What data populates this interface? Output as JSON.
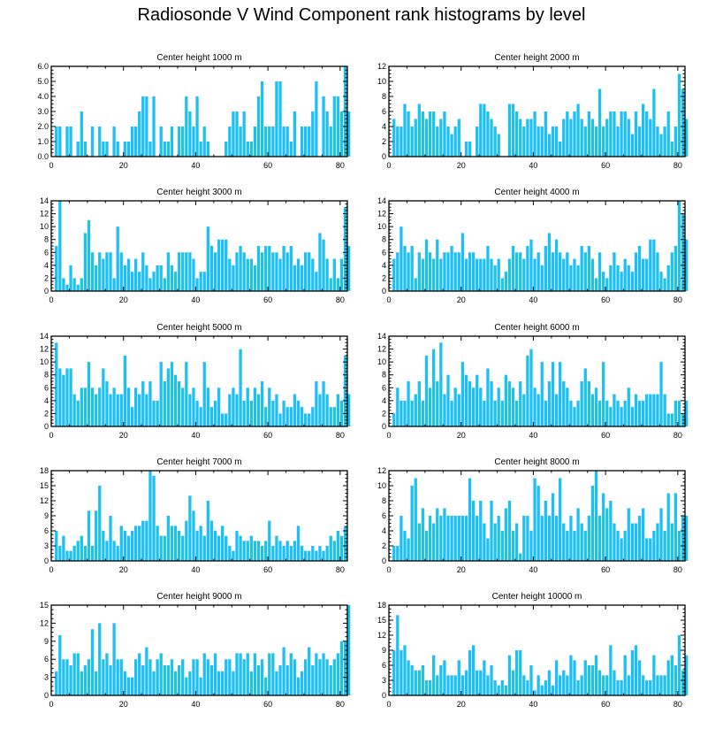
{
  "title": "Radiosonde V Wind Component rank histograms by level",
  "bar_color": "#1ec0f2",
  "chart_data": [
    {
      "type": "bar",
      "title": "Center height 1000 m",
      "xlim": [
        0,
        82
      ],
      "ylim": [
        0,
        6
      ],
      "xticks": [
        "0",
        "20",
        "40",
        "60",
        "80"
      ],
      "yticks": [
        "0.0",
        "1.0",
        "2.0",
        "3.0",
        "4.0",
        "5.0",
        "6.0"
      ],
      "values": [
        0,
        2,
        2,
        0,
        2,
        2,
        0,
        1,
        3,
        1,
        0,
        2,
        0,
        2,
        1,
        1,
        0,
        2,
        1,
        0,
        1,
        1,
        2,
        2,
        3,
        4,
        4,
        1,
        4,
        0,
        2,
        1,
        1,
        2,
        0,
        2,
        2,
        4,
        3,
        2,
        4,
        1,
        2,
        1,
        0,
        0,
        0,
        0,
        1,
        2,
        3,
        3,
        2,
        3,
        1,
        1,
        2,
        4,
        5,
        2,
        2,
        2,
        5,
        5,
        2,
        2,
        1,
        3,
        0,
        2,
        2,
        2,
        3,
        5,
        0,
        4,
        3,
        2,
        4,
        4,
        3,
        6,
        3
      ],
      "x0": 0
    },
    {
      "type": "bar",
      "title": "Center height 2000 m",
      "xlim": [
        0,
        82
      ],
      "ylim": [
        0,
        12
      ],
      "xticks": [
        "0",
        "20",
        "40",
        "60",
        "80"
      ],
      "yticks": [
        "0",
        "2",
        "4",
        "6",
        "8",
        "10",
        "12"
      ],
      "values": [
        0,
        5,
        4,
        4,
        7,
        6,
        4,
        5,
        7,
        6,
        5,
        6,
        6,
        4,
        5,
        6,
        4,
        3,
        4,
        5,
        0,
        2,
        2,
        0,
        4,
        7,
        7,
        6,
        5,
        4,
        3,
        0,
        0,
        7,
        7,
        6,
        5,
        4,
        5,
        5,
        6,
        4,
        4,
        6,
        3,
        4,
        4,
        2,
        5,
        6,
        5,
        6,
        7,
        5,
        4,
        6,
        5,
        4,
        9,
        4,
        5,
        6,
        6,
        4,
        6,
        6,
        5,
        3,
        6,
        4,
        7,
        6,
        5,
        9,
        4,
        3,
        4,
        6,
        2,
        4,
        11,
        9,
        5
      ],
      "x0": 0
    },
    {
      "type": "bar",
      "title": "Center height 3000 m",
      "xlim": [
        0,
        82
      ],
      "ylim": [
        0,
        14
      ],
      "xticks": [
        "0",
        "20",
        "40",
        "60",
        "80"
      ],
      "yticks": [
        "0",
        "2",
        "4",
        "6",
        "8",
        "10",
        "12",
        "14"
      ],
      "values": [
        7,
        14,
        2,
        1,
        4,
        2,
        1,
        2,
        9,
        11,
        6,
        4,
        6,
        5,
        6,
        6,
        2,
        10,
        6,
        4,
        5,
        3,
        5,
        3,
        6,
        4,
        2,
        3,
        4,
        4,
        2,
        6,
        4,
        3,
        6,
        6,
        6,
        6,
        5,
        2,
        3,
        3,
        10,
        7,
        6,
        8,
        8,
        8,
        5,
        4,
        6,
        7,
        6,
        5,
        5,
        4,
        7,
        6,
        7,
        7,
        6,
        6,
        5,
        7,
        6,
        7,
        4,
        5,
        4,
        6,
        6,
        5,
        3,
        9,
        8,
        5,
        2,
        5,
        2,
        5,
        13,
        7
      ],
      "x0": 1
    },
    {
      "type": "bar",
      "title": "Center height 4000 m",
      "xlim": [
        0,
        82
      ],
      "ylim": [
        0,
        14
      ],
      "xticks": [
        "0",
        "20",
        "40",
        "60",
        "80"
      ],
      "yticks": [
        "0",
        "2",
        "4",
        "6",
        "8",
        "10",
        "12",
        "14"
      ],
      "values": [
        5,
        6,
        10,
        7,
        6,
        7,
        2,
        6,
        5,
        8,
        6,
        5,
        8,
        5,
        6,
        6,
        7,
        6,
        6,
        9,
        5,
        6,
        6,
        5,
        5,
        5,
        7,
        5,
        4,
        5,
        2,
        3,
        5,
        7,
        6,
        6,
        5,
        7,
        8,
        5,
        6,
        4,
        7,
        9,
        6,
        8,
        6,
        5,
        6,
        4,
        5,
        4,
        7,
        6,
        7,
        5,
        2,
        6,
        3,
        2,
        4,
        6,
        4,
        3,
        5,
        4,
        3,
        6,
        7,
        5,
        5,
        8,
        8,
        6,
        3,
        2,
        4,
        6,
        7,
        14,
        12,
        8
      ],
      "x0": 1
    },
    {
      "type": "bar",
      "title": "Center height 5000 m",
      "xlim": [
        0,
        82
      ],
      "ylim": [
        0,
        14
      ],
      "xticks": [
        "0",
        "20",
        "40",
        "60",
        "80"
      ],
      "yticks": [
        "0",
        "2",
        "4",
        "6",
        "8",
        "10",
        "12",
        "14"
      ],
      "values": [
        13,
        9,
        8,
        9,
        9,
        5,
        4,
        6,
        6,
        10,
        6,
        5,
        6,
        9,
        7,
        5,
        6,
        5,
        5,
        11,
        6,
        3,
        6,
        5,
        7,
        5,
        7,
        4,
        4,
        10,
        7,
        9,
        10,
        8,
        7,
        6,
        10,
        5,
        6,
        4,
        3,
        10,
        6,
        3,
        4,
        6,
        2,
        2,
        5,
        6,
        5,
        12,
        4,
        6,
        4,
        6,
        5,
        7,
        3,
        6,
        4,
        5,
        2,
        4,
        3,
        3,
        5,
        4,
        3,
        2,
        2,
        3,
        7,
        5,
        7,
        5,
        3,
        3,
        5,
        4,
        11,
        5
      ],
      "x0": 1
    },
    {
      "type": "bar",
      "title": "Center height 6000 m",
      "xlim": [
        0,
        82
      ],
      "ylim": [
        0,
        14
      ],
      "xticks": [
        "0",
        "20",
        "40",
        "60",
        "80"
      ],
      "yticks": [
        "0",
        "2",
        "4",
        "6",
        "8",
        "10",
        "12",
        "14"
      ],
      "values": [
        2,
        6,
        4,
        4,
        7,
        4,
        5,
        7,
        4,
        11,
        6,
        12,
        7,
        13,
        5,
        8,
        4,
        6,
        5,
        10,
        8,
        7,
        6,
        8,
        6,
        4,
        9,
        7,
        4,
        6,
        4,
        8,
        7,
        6,
        4,
        7,
        5,
        11,
        12,
        6,
        5,
        10,
        4,
        7,
        10,
        5,
        10,
        7,
        6,
        4,
        3,
        4,
        7,
        9,
        7,
        5,
        6,
        4,
        10,
        4,
        3,
        5,
        4,
        3,
        4,
        6,
        3,
        5,
        4,
        4,
        5,
        5,
        5,
        5,
        10,
        5,
        2,
        2,
        4,
        4,
        2,
        4
      ],
      "x0": 1
    },
    {
      "type": "bar",
      "title": "Center height 7000 m",
      "xlim": [
        0,
        82
      ],
      "ylim": [
        0,
        18
      ],
      "xticks": [
        "0",
        "20",
        "40",
        "60",
        "80"
      ],
      "yticks": [
        "0",
        "3",
        "6",
        "9",
        "12",
        "15",
        "18"
      ],
      "values": [
        6,
        3,
        5,
        2,
        2,
        3,
        4,
        5,
        3,
        10,
        3,
        10,
        15,
        6,
        4,
        9,
        4,
        3,
        7,
        6,
        5,
        6,
        7,
        7,
        8,
        8,
        18,
        17,
        7,
        5,
        5,
        9,
        7,
        7,
        6,
        5,
        8,
        13,
        10,
        6,
        7,
        5,
        12,
        8,
        6,
        5,
        7,
        5,
        3,
        2,
        6,
        5,
        4,
        4,
        5,
        4,
        4,
        3,
        4,
        8,
        3,
        5,
        4,
        3,
        4,
        3,
        4,
        7,
        3,
        2,
        2,
        3,
        2,
        3,
        2,
        3,
        5,
        4,
        6,
        5,
        7
      ],
      "x0": 1
    },
    {
      "type": "bar",
      "title": "Center height 8000 m",
      "xlim": [
        0,
        82
      ],
      "ylim": [
        0,
        12
      ],
      "xticks": [
        "0",
        "20",
        "40",
        "60",
        "80"
      ],
      "yticks": [
        "0",
        "2",
        "4",
        "6",
        "8",
        "10",
        "12"
      ],
      "values": [
        2,
        2,
        6,
        4,
        3,
        10,
        11,
        5,
        7,
        4,
        6,
        5,
        7,
        6,
        7,
        6,
        6,
        6,
        6,
        6,
        6,
        11,
        8,
        6,
        8,
        5,
        3,
        8,
        5,
        6,
        4,
        7,
        8,
        4,
        5,
        1,
        6,
        6,
        4,
        11,
        10,
        6,
        8,
        6,
        9,
        6,
        11,
        5,
        4,
        6,
        4,
        7,
        5,
        4,
        6,
        10,
        12,
        6,
        9,
        7,
        8,
        5,
        4,
        3,
        4,
        7,
        5,
        5,
        6,
        7,
        3,
        3,
        4,
        5,
        7,
        4,
        9,
        5,
        9,
        4,
        6,
        6
      ],
      "x0": 1
    },
    {
      "type": "bar",
      "title": "Center height 9000 m",
      "xlim": [
        0,
        82
      ],
      "ylim": [
        0,
        15
      ],
      "xticks": [
        "0",
        "20",
        "40",
        "60",
        "80"
      ],
      "yticks": [
        "0",
        "3",
        "6",
        "9",
        "12",
        "15"
      ],
      "values": [
        4,
        10,
        6,
        6,
        5,
        7,
        7,
        4,
        5,
        6,
        11,
        4,
        12,
        6,
        7,
        5,
        12,
        6,
        6,
        4,
        3,
        3,
        6,
        7,
        5,
        8,
        6,
        4,
        6,
        7,
        5,
        5,
        6,
        4,
        5,
        6,
        3,
        4,
        6,
        6,
        3,
        7,
        6,
        5,
        7,
        4,
        4,
        6,
        6,
        4,
        7,
        7,
        6,
        7,
        4,
        7,
        5,
        6,
        3,
        7,
        7,
        4,
        5,
        8,
        5,
        7,
        6,
        3,
        4,
        6,
        8,
        5,
        7,
        6,
        7,
        6,
        5,
        6,
        7,
        9,
        9,
        15
      ],
      "x0": 1
    },
    {
      "type": "bar",
      "title": "Center height 10000 m",
      "xlim": [
        0,
        82
      ],
      "ylim": [
        0,
        18
      ],
      "xticks": [
        "0",
        "20",
        "40",
        "60",
        "80"
      ],
      "yticks": [
        "0",
        "3",
        "6",
        "9",
        "12",
        "15",
        "18"
      ],
      "values": [
        9,
        16,
        9,
        10,
        7,
        6,
        5,
        5,
        6,
        3,
        3,
        8,
        4,
        6,
        7,
        4,
        4,
        4,
        7,
        4,
        5,
        9,
        10,
        5,
        5,
        7,
        4,
        6,
        3,
        2,
        3,
        2,
        8,
        5,
        9,
        9,
        4,
        3,
        6,
        1,
        4,
        2,
        3,
        5,
        2,
        7,
        4,
        5,
        4,
        8,
        7,
        3,
        4,
        7,
        6,
        6,
        8,
        5,
        4,
        4,
        10,
        5,
        3,
        3,
        8,
        4,
        9,
        10,
        7,
        4,
        3,
        3,
        8,
        4,
        4,
        4,
        7,
        8,
        6,
        12,
        5,
        8
      ],
      "x0": 1
    }
  ]
}
